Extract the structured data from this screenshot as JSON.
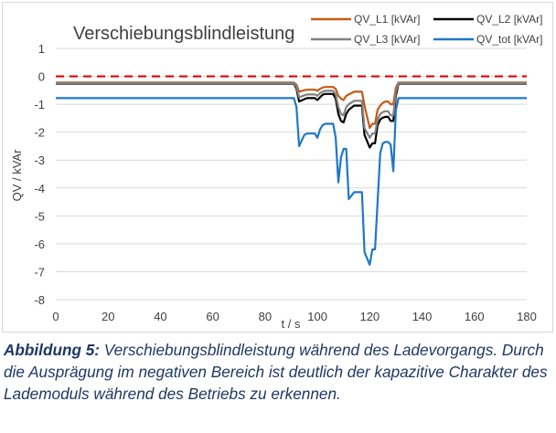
{
  "chart_data": {
    "type": "line",
    "title": "Verschiebungsblindleistung",
    "xlabel": "t / s",
    "ylabel": "QV / kVAr",
    "xlim": [
      0,
      180
    ],
    "ylim": [
      -8,
      1
    ],
    "xticks": [
      0,
      20,
      40,
      60,
      80,
      100,
      120,
      140,
      160,
      180
    ],
    "yticks": [
      1,
      0,
      -1,
      -2,
      -3,
      -4,
      -5,
      -6,
      -7,
      -8
    ],
    "grid": "horizontal",
    "legend_position": "top-right",
    "reference_line": {
      "y": 0,
      "color": "#e00000",
      "style": "dashed"
    },
    "series": [
      {
        "name": "QV_L1 [kVAr]",
        "color": "#c55a11",
        "x": [
          0,
          91,
          92,
          93,
          95,
          96,
          99,
          100,
          101,
          102,
          103,
          106,
          107,
          108,
          109,
          110,
          111,
          112,
          114,
          117,
          118,
          120,
          121,
          122,
          123,
          124,
          125,
          126,
          127,
          128,
          129,
          130,
          131,
          180
        ],
        "y": [
          -0.22,
          -0.22,
          -0.3,
          -0.55,
          -0.5,
          -0.48,
          -0.48,
          -0.52,
          -0.45,
          -0.4,
          -0.38,
          -0.38,
          -0.45,
          -0.7,
          -0.8,
          -0.85,
          -0.7,
          -0.65,
          -0.55,
          -0.55,
          -1.05,
          -1.85,
          -1.7,
          -1.7,
          -1.2,
          -1.05,
          -0.95,
          -0.9,
          -0.9,
          -1.0,
          -1.0,
          -0.4,
          -0.22,
          -0.22
        ]
      },
      {
        "name": "QV_L2 [kVAr]",
        "color": "#000000",
        "x": [
          0,
          91,
          92,
          93,
          95,
          96,
          99,
          100,
          101,
          102,
          103,
          106,
          107,
          108,
          109,
          110,
          111,
          112,
          114,
          117,
          118,
          120,
          121,
          122,
          123,
          124,
          125,
          126,
          127,
          128,
          129,
          130,
          131,
          180
        ],
        "y": [
          -0.26,
          -0.26,
          -0.45,
          -0.9,
          -0.82,
          -0.78,
          -0.78,
          -0.85,
          -0.75,
          -0.66,
          -0.63,
          -0.63,
          -0.8,
          -1.35,
          -1.6,
          -1.65,
          -1.35,
          -1.2,
          -1.05,
          -1.05,
          -2.1,
          -2.55,
          -2.4,
          -2.4,
          -1.75,
          -1.55,
          -1.48,
          -1.45,
          -1.45,
          -1.6,
          -1.6,
          -0.7,
          -0.26,
          -0.26
        ]
      },
      {
        "name": "QV_L3 [kVAr]",
        "color": "#808080",
        "x": [
          0,
          91,
          92,
          93,
          95,
          96,
          99,
          100,
          101,
          102,
          103,
          106,
          107,
          108,
          109,
          110,
          111,
          112,
          114,
          117,
          118,
          120,
          121,
          122,
          123,
          124,
          125,
          126,
          127,
          128,
          129,
          130,
          131,
          180
        ],
        "y": [
          -0.24,
          -0.24,
          -0.38,
          -0.75,
          -0.68,
          -0.65,
          -0.65,
          -0.7,
          -0.6,
          -0.55,
          -0.52,
          -0.52,
          -0.65,
          -1.1,
          -1.35,
          -1.4,
          -1.1,
          -1.0,
          -0.88,
          -0.88,
          -1.85,
          -2.2,
          -2.05,
          -2.05,
          -1.55,
          -1.35,
          -1.28,
          -1.25,
          -1.25,
          -1.4,
          -1.4,
          -0.55,
          -0.24,
          -0.24
        ]
      },
      {
        "name": "QV_tot [kVAr]",
        "color": "#1f77c8",
        "x": [
          0,
          91,
          92,
          93,
          95,
          96,
          99,
          100,
          101,
          102,
          103,
          106,
          107,
          108,
          109,
          110,
          111,
          112,
          114,
          117,
          118,
          120,
          121,
          122,
          123,
          124,
          125,
          126,
          127,
          128,
          129,
          130,
          131,
          180
        ],
        "y": [
          -0.78,
          -0.78,
          -1.1,
          -2.5,
          -2.1,
          -2.05,
          -2.05,
          -2.2,
          -1.9,
          -1.75,
          -1.7,
          -1.7,
          -2.2,
          -3.8,
          -2.9,
          -2.6,
          -2.6,
          -4.4,
          -4.15,
          -4.15,
          -6.3,
          -6.75,
          -6.2,
          -6.2,
          -4.5,
          -2.75,
          -2.4,
          -2.35,
          -2.35,
          -2.45,
          -3.4,
          -1.2,
          -0.78,
          -0.78
        ]
      }
    ]
  },
  "caption": {
    "label": "Abbildung 5:",
    "text": " Verschiebungsblindleistung während des Ladevorgangs. Durch die Ausprägung im negativen Bereich ist deutlich der kapazitive Charakter des Lademoduls während des Betriebs zu erkennen."
  }
}
